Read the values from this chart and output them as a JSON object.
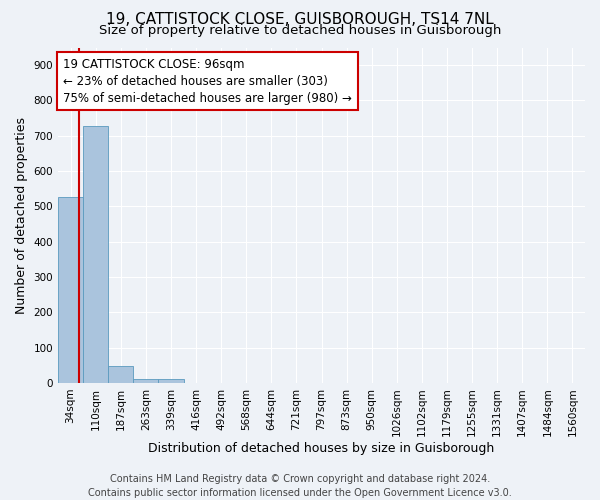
{
  "title1": "19, CATTISTOCK CLOSE, GUISBOROUGH, TS14 7NL",
  "title2": "Size of property relative to detached houses in Guisborough",
  "xlabel": "Distribution of detached houses by size in Guisborough",
  "ylabel": "Number of detached properties",
  "categories": [
    "34sqm",
    "110sqm",
    "187sqm",
    "263sqm",
    "339sqm",
    "416sqm",
    "492sqm",
    "568sqm",
    "644sqm",
    "721sqm",
    "797sqm",
    "873sqm",
    "950sqm",
    "1026sqm",
    "1102sqm",
    "1179sqm",
    "1255sqm",
    "1331sqm",
    "1407sqm",
    "1484sqm",
    "1560sqm"
  ],
  "values": [
    527,
    728,
    49,
    12,
    10,
    0,
    0,
    0,
    0,
    0,
    0,
    0,
    0,
    0,
    0,
    0,
    0,
    0,
    0,
    0,
    0
  ],
  "bar_color": "#aac4dd",
  "bar_edge_color": "#5a9abf",
  "property_line_color": "#cc0000",
  "annotation_line1": "19 CATTISTOCK CLOSE: 96sqm",
  "annotation_line2": "← 23% of detached houses are smaller (303)",
  "annotation_line3": "75% of semi-detached houses are larger (980) →",
  "annotation_box_color": "#ffffff",
  "annotation_box_edge_color": "#cc0000",
  "ylim": [
    0,
    950
  ],
  "yticks": [
    0,
    100,
    200,
    300,
    400,
    500,
    600,
    700,
    800,
    900
  ],
  "footer1": "Contains HM Land Registry data © Crown copyright and database right 2024.",
  "footer2": "Contains public sector information licensed under the Open Government Licence v3.0.",
  "background_color": "#eef2f7",
  "plot_background_color": "#eef2f7",
  "grid_color": "#ffffff",
  "title1_fontsize": 11,
  "title2_fontsize": 9.5,
  "axis_label_fontsize": 9,
  "tick_fontsize": 7.5,
  "annotation_fontsize": 8.5,
  "footer_fontsize": 7
}
